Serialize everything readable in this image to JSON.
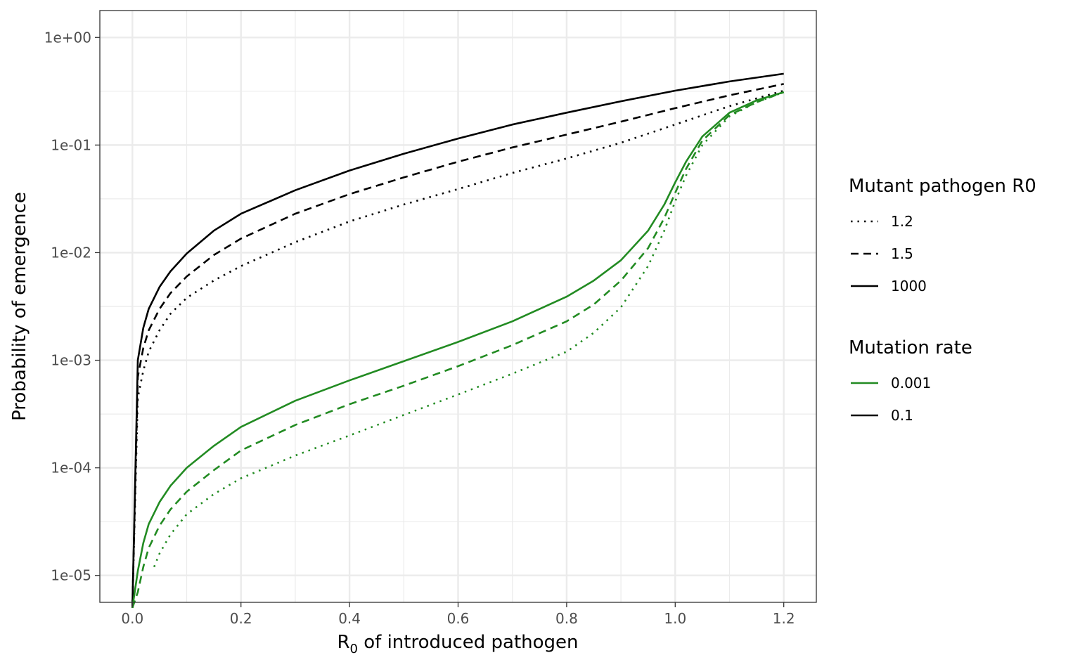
{
  "chart_data": {
    "type": "line",
    "xlabel_main": "R",
    "xlabel_sub": "0",
    "xlabel_rest": " of introduced pathogen",
    "ylabel": "Probability of emergence",
    "xlim": [
      -0.06,
      1.26
    ],
    "ylim_log10": [
      -5.25,
      0.25
    ],
    "y_scale": "log10",
    "x_ticks": [
      0.0,
      0.2,
      0.4,
      0.6,
      0.8,
      1.0,
      1.2
    ],
    "x_tick_labels": [
      "0.0",
      "0.2",
      "0.4",
      "0.6",
      "0.8",
      "1.0",
      "1.2"
    ],
    "y_ticks": [
      1e-05,
      0.0001,
      0.001,
      0.01,
      0.1,
      1
    ],
    "y_tick_labels": [
      "1e-05",
      "1e-04",
      "1e-03",
      "1e-02",
      "1e-01",
      "1e+00"
    ],
    "grid": true,
    "legend_placement": "right",
    "legends": [
      {
        "title": "Mutant pathogen R0",
        "entries": [
          {
            "label": "1.2",
            "linetype": "dotted",
            "color": "#000000"
          },
          {
            "label": "1.5",
            "linetype": "dashed",
            "color": "#000000"
          },
          {
            "label": "1000",
            "linetype": "solid",
            "color": "#000000"
          }
        ]
      },
      {
        "title": "Mutation rate",
        "entries": [
          {
            "label": "0.001",
            "linetype": "solid",
            "color": "#228B22"
          },
          {
            "label": "0.1",
            "linetype": "solid",
            "color": "#000000"
          }
        ]
      }
    ],
    "series": [
      {
        "mutation_rate": "0.1",
        "mutant_r0": "1000",
        "color": "#000000",
        "linetype": "solid",
        "x": [
          0.0,
          0.01,
          0.02,
          0.03,
          0.05,
          0.07,
          0.1,
          0.15,
          0.2,
          0.3,
          0.4,
          0.5,
          0.6,
          0.7,
          0.8,
          0.9,
          1.0,
          1.1,
          1.2
        ],
        "y": [
          5e-06,
          0.001,
          0.002,
          0.003,
          0.0048,
          0.0067,
          0.0098,
          0.016,
          0.023,
          0.038,
          0.058,
          0.083,
          0.115,
          0.155,
          0.2,
          0.255,
          0.32,
          0.39,
          0.46
        ]
      },
      {
        "mutation_rate": "0.1",
        "mutant_r0": "1.5",
        "color": "#000000",
        "linetype": "dashed",
        "x": [
          0.0,
          0.01,
          0.02,
          0.03,
          0.05,
          0.07,
          0.1,
          0.15,
          0.2,
          0.3,
          0.4,
          0.5,
          0.6,
          0.7,
          0.8,
          0.9,
          1.0,
          1.1,
          1.2
        ],
        "y": [
          5e-06,
          0.0007,
          0.0013,
          0.0019,
          0.003,
          0.0042,
          0.006,
          0.0095,
          0.0135,
          0.023,
          0.035,
          0.05,
          0.07,
          0.095,
          0.125,
          0.165,
          0.22,
          0.29,
          0.37
        ]
      },
      {
        "mutation_rate": "0.1",
        "mutant_r0": "1.2",
        "color": "#000000",
        "linetype": "dotted",
        "x": [
          0.0,
          0.01,
          0.02,
          0.03,
          0.05,
          0.07,
          0.1,
          0.15,
          0.2,
          0.3,
          0.4,
          0.5,
          0.6,
          0.7,
          0.8,
          0.9,
          1.0,
          1.1,
          1.2
        ],
        "y": [
          5e-06,
          0.00045,
          0.0008,
          0.0012,
          0.0019,
          0.0027,
          0.0038,
          0.0055,
          0.0075,
          0.0125,
          0.0195,
          0.028,
          0.039,
          0.055,
          0.075,
          0.105,
          0.155,
          0.23,
          0.32
        ]
      },
      {
        "mutation_rate": "0.001",
        "mutant_r0": "1000",
        "color": "#228B22",
        "linetype": "solid",
        "x": [
          0.0,
          0.01,
          0.02,
          0.03,
          0.05,
          0.07,
          0.1,
          0.15,
          0.2,
          0.3,
          0.4,
          0.5,
          0.6,
          0.7,
          0.8,
          0.85,
          0.9,
          0.95,
          0.98,
          1.0,
          1.02,
          1.05,
          1.1,
          1.15,
          1.2
        ],
        "y": [
          5e-06,
          1.1e-05,
          2e-05,
          3e-05,
          4.8e-05,
          6.8e-05,
          0.0001,
          0.00016,
          0.00024,
          0.00042,
          0.00065,
          0.00098,
          0.00148,
          0.0023,
          0.0039,
          0.0055,
          0.0085,
          0.016,
          0.028,
          0.045,
          0.07,
          0.12,
          0.2,
          0.26,
          0.31
        ]
      },
      {
        "mutation_rate": "0.001",
        "mutant_r0": "1.5",
        "color": "#228B22",
        "linetype": "dashed",
        "x": [
          0.0,
          0.01,
          0.02,
          0.03,
          0.05,
          0.07,
          0.1,
          0.15,
          0.2,
          0.3,
          0.4,
          0.5,
          0.6,
          0.7,
          0.8,
          0.85,
          0.9,
          0.95,
          0.98,
          1.0,
          1.02,
          1.05,
          1.1,
          1.15,
          1.2
        ],
        "y": [
          5e-06,
          7e-06,
          1.2e-05,
          1.8e-05,
          2.9e-05,
          4.1e-05,
          6e-05,
          9.5e-05,
          0.000145,
          0.00025,
          0.00039,
          0.00058,
          0.00088,
          0.00138,
          0.0023,
          0.0033,
          0.0055,
          0.011,
          0.021,
          0.036,
          0.06,
          0.11,
          0.19,
          0.25,
          0.31
        ]
      },
      {
        "mutation_rate": "0.001",
        "mutant_r0": "1.2",
        "color": "#228B22",
        "linetype": "dotted",
        "x": [
          0.04,
          0.05,
          0.07,
          0.1,
          0.15,
          0.2,
          0.3,
          0.4,
          0.5,
          0.6,
          0.7,
          0.8,
          0.85,
          0.9,
          0.95,
          0.98,
          1.0,
          1.02,
          1.05,
          1.1,
          1.15,
          1.2
        ],
        "y": [
          1.2e-05,
          1.6e-05,
          2.4e-05,
          3.7e-05,
          5.7e-05,
          8e-05,
          0.00013,
          0.0002,
          0.00031,
          0.00048,
          0.00075,
          0.0012,
          0.0018,
          0.0031,
          0.0075,
          0.016,
          0.03,
          0.052,
          0.1,
          0.185,
          0.25,
          0.31
        ]
      }
    ]
  }
}
